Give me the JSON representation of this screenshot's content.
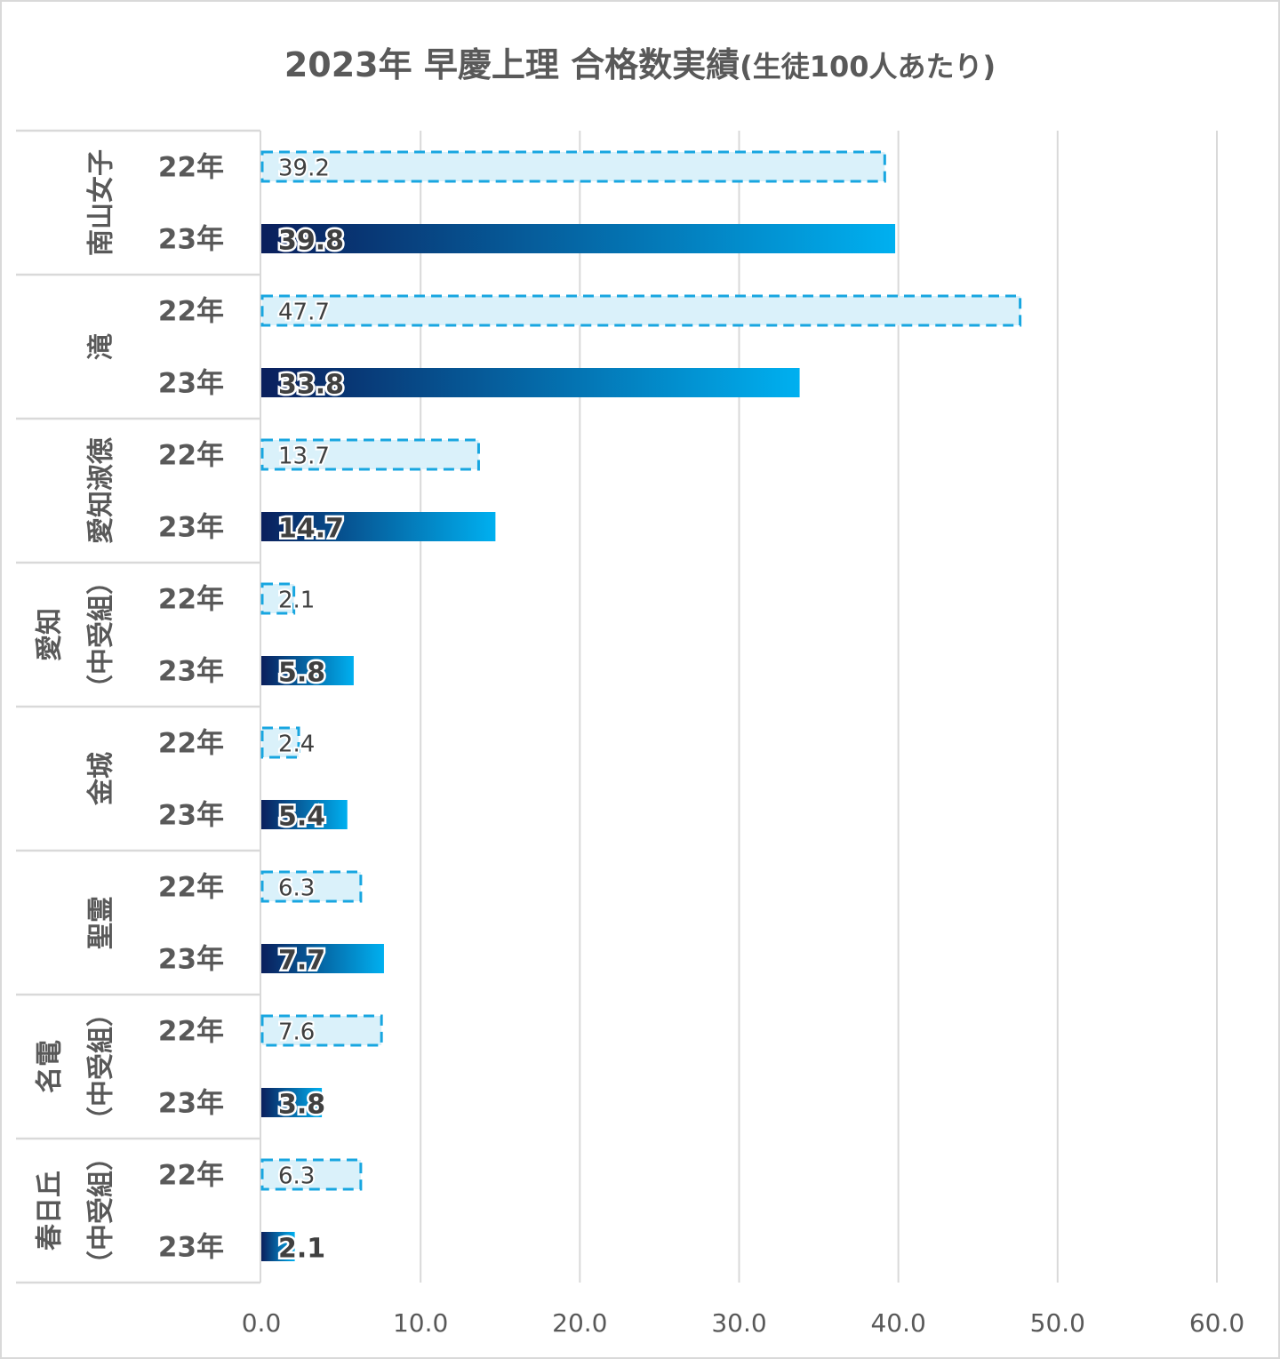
{
  "title_main": "2023年 早慶上理 合格数実績",
  "title_sub": "(生徒100人あたり)",
  "colors": {
    "bar22_fill": "#daf1fa",
    "bar22_border": "#18a6e0",
    "bar23_start": "#0a1f5c",
    "bar23_end": "#00b0f0",
    "grid": "#d9d9d9",
    "text": "#595959"
  },
  "chart_data": {
    "type": "bar",
    "orientation": "horizontal",
    "title": "2023年 早慶上理 合格数実績(生徒100人あたり)",
    "xlim": [
      0,
      60
    ],
    "xticks": [
      "0.0",
      "10.0",
      "20.0",
      "30.0",
      "40.0",
      "50.0",
      "60.0"
    ],
    "xtick_values": [
      0,
      10,
      20,
      30,
      40,
      50,
      60
    ],
    "grid": true,
    "series_names": [
      "22年",
      "23年"
    ],
    "groups": [
      {
        "name_lines": [
          "南山女子"
        ],
        "years": [
          "22年",
          "23年"
        ],
        "values": [
          39.2,
          39.8
        ],
        "labels": [
          "39.2",
          "39.8"
        ]
      },
      {
        "name_lines": [
          "滝"
        ],
        "years": [
          "22年",
          "23年"
        ],
        "values": [
          47.7,
          33.8
        ],
        "labels": [
          "47.7",
          "33.8"
        ]
      },
      {
        "name_lines": [
          "愛知淑徳"
        ],
        "years": [
          "22年",
          "23年"
        ],
        "values": [
          13.7,
          14.7
        ],
        "labels": [
          "13.7",
          "14.7"
        ]
      },
      {
        "name_lines": [
          "愛知",
          "（中受組）"
        ],
        "years": [
          "22年",
          "23年"
        ],
        "values": [
          2.1,
          5.8
        ],
        "labels": [
          "2.1",
          "5.8"
        ]
      },
      {
        "name_lines": [
          "金城"
        ],
        "years": [
          "22年",
          "23年"
        ],
        "values": [
          2.4,
          5.4
        ],
        "labels": [
          "2.4",
          "5.4"
        ]
      },
      {
        "name_lines": [
          "聖霊"
        ],
        "years": [
          "22年",
          "23年"
        ],
        "values": [
          6.3,
          7.7
        ],
        "labels": [
          "6.3",
          "7.7"
        ]
      },
      {
        "name_lines": [
          "名電",
          "（中受組）"
        ],
        "years": [
          "22年",
          "23年"
        ],
        "values": [
          7.6,
          3.8
        ],
        "labels": [
          "7.6",
          "3.8"
        ]
      },
      {
        "name_lines": [
          "春日丘",
          "（中受組）"
        ],
        "years": [
          "22年",
          "23年"
        ],
        "values": [
          6.3,
          2.1
        ],
        "labels": [
          "6.3",
          "2.1"
        ]
      }
    ]
  }
}
